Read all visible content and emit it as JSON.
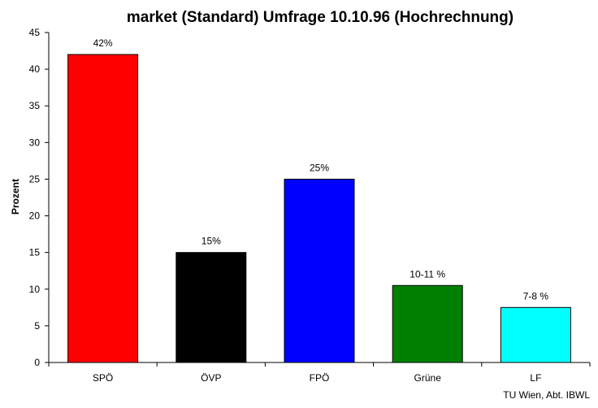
{
  "chart_data": {
    "type": "bar",
    "title": "market (Standard) Umfrage 10.10.96 (Hochrechnung)",
    "xlabel": "",
    "ylabel": "Prozent",
    "ylim": [
      0,
      45
    ],
    "yticks": [
      0,
      5,
      10,
      15,
      20,
      25,
      30,
      35,
      40,
      45
    ],
    "grid": false,
    "legend": "none",
    "categories": [
      "SPÖ",
      "ÖVP",
      "FPÖ",
      "Grüne",
      "LF"
    ],
    "values": [
      42,
      15,
      25,
      10.5,
      7.5
    ],
    "data_labels": [
      "42%",
      "15%",
      "25%",
      "10-11 %",
      "7-8 %"
    ],
    "colors": [
      "#ff0000",
      "#000000",
      "#0000ff",
      "#008000",
      "#00ffff"
    ],
    "source": "TU Wien, Abt. IBWL"
  }
}
